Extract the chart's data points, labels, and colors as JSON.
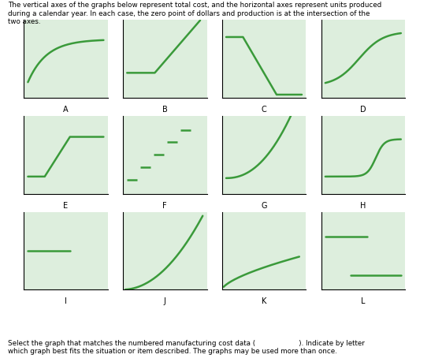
{
  "bg_color": "#ffffff",
  "line_color": "#3a9a3a",
  "line_width": 1.8,
  "graph_bg": "#ddeedd",
  "title_text": "The vertical axes of the graphs below represent total cost, and the horizontal axes represent units produced\nduring a calendar year. In each case, the zero point of dollars and production is at the intersection of the\ntwo axes.",
  "footer_text": "Select the graph that matches the numbered manufacturing cost data (                    ). Indicate by letter\nwhich graph best fits the situation or item described. The graphs may be used more than once.",
  "labels": [
    "A",
    "B",
    "C",
    "D",
    "E",
    "F",
    "G",
    "H",
    "I",
    "J",
    "K",
    "L"
  ],
  "title_fontsize": 6.3,
  "label_fontsize": 7.0,
  "footer_fontsize": 6.3
}
